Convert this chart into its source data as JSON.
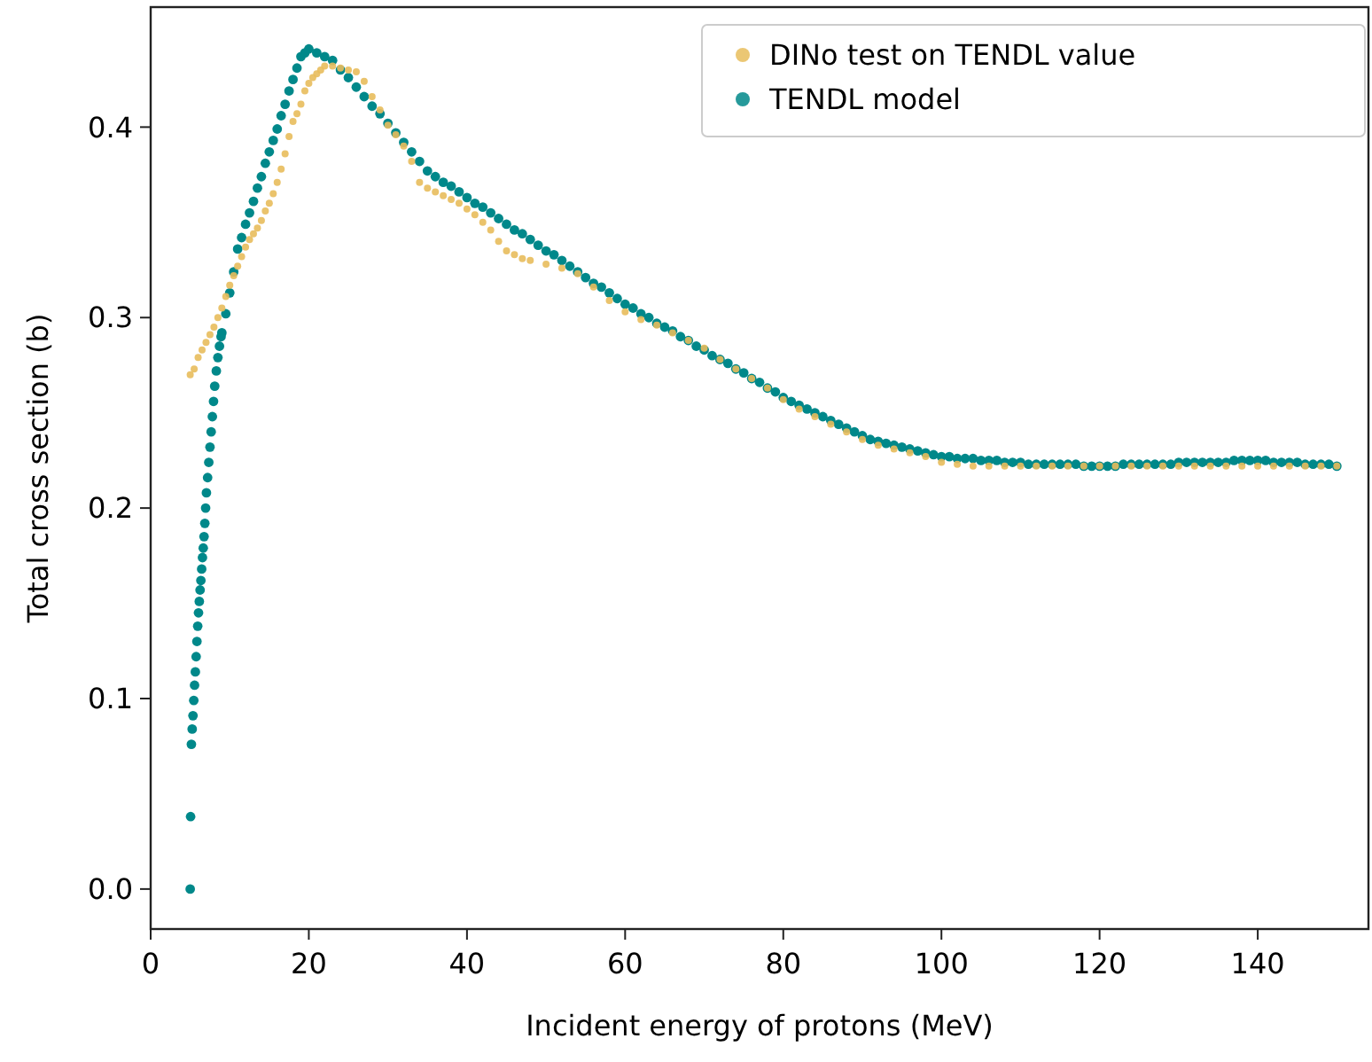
{
  "chart_data": {
    "type": "scatter",
    "xlabel": "Incident energy of protons (MeV)",
    "ylabel": "Total cross section (b)",
    "xlim": [
      0,
      154
    ],
    "ylim": [
      -0.021,
      0.463
    ],
    "xticks": [
      0,
      20,
      40,
      60,
      80,
      100,
      120,
      140
    ],
    "yticks": [
      {
        "value": 0,
        "label": "0.0"
      },
      0.1,
      0.2,
      0.3,
      0.4
    ],
    "legend": "top right",
    "marker": "circle",
    "series": [
      {
        "name": "DINo test on TENDL value",
        "color": "#e8bd5c",
        "x": [
          5,
          5.5,
          6,
          6.5,
          7,
          7.5,
          8,
          8.5,
          9,
          9.5,
          10,
          10.5,
          11,
          11.5,
          12,
          12.5,
          13,
          13.5,
          14,
          14.5,
          15,
          15.5,
          16,
          16.5,
          17,
          17.5,
          18,
          18.5,
          19,
          19.5,
          20,
          20.5,
          21,
          21.5,
          22,
          23,
          24,
          25,
          26,
          27,
          28,
          29,
          30,
          31,
          32,
          33,
          34,
          35,
          36,
          37,
          38,
          39,
          40,
          41,
          42,
          43,
          44,
          45,
          46,
          47,
          48,
          50,
          52,
          54,
          56,
          58,
          60,
          62,
          64,
          66,
          68,
          70,
          72,
          74,
          76,
          78,
          80,
          82,
          84,
          86,
          88,
          90,
          92,
          94,
          96,
          98,
          100,
          102,
          104,
          106,
          108,
          110,
          112,
          114,
          116,
          118,
          120,
          122,
          124,
          126,
          128,
          130,
          132,
          134,
          136,
          138,
          140,
          142,
          144,
          146,
          148,
          150
        ],
        "values": [
          0.27,
          0.273,
          0.279,
          0.283,
          0.287,
          0.291,
          0.295,
          0.3,
          0.305,
          0.311,
          0.317,
          0.322,
          0.327,
          0.332,
          0.337,
          0.341,
          0.344,
          0.347,
          0.351,
          0.356,
          0.36,
          0.365,
          0.371,
          0.378,
          0.386,
          0.395,
          0.403,
          0.407,
          0.412,
          0.419,
          0.423,
          0.426,
          0.428,
          0.43,
          0.432,
          0.432,
          0.431,
          0.43,
          0.429,
          0.424,
          0.416,
          0.409,
          0.401,
          0.396,
          0.39,
          0.382,
          0.371,
          0.368,
          0.366,
          0.364,
          0.362,
          0.36,
          0.357,
          0.354,
          0.35,
          0.346,
          0.34,
          0.335,
          0.333,
          0.331,
          0.33,
          0.328,
          0.326,
          0.323,
          0.316,
          0.309,
          0.303,
          0.299,
          0.296,
          0.292,
          0.288,
          0.284,
          0.278,
          0.273,
          0.268,
          0.263,
          0.257,
          0.252,
          0.248,
          0.244,
          0.24,
          0.236,
          0.233,
          0.231,
          0.229,
          0.227,
          0.224,
          0.223,
          0.222,
          0.222,
          0.222,
          0.222,
          0.222,
          0.222,
          0.222,
          0.222,
          0.222,
          0.222,
          0.222,
          0.222,
          0.222,
          0.222,
          0.222,
          0.222,
          0.222,
          0.222,
          0.222,
          0.222,
          0.222,
          0.222,
          0.222,
          0.222
        ]
      },
      {
        "name": "TENDL model",
        "color": "#00888a",
        "x": [
          5,
          5.05,
          5.15,
          5.25,
          5.35,
          5.45,
          5.55,
          5.65,
          5.75,
          5.85,
          5.95,
          6.05,
          6.15,
          6.25,
          6.35,
          6.45,
          6.55,
          6.65,
          6.75,
          6.85,
          6.95,
          7.05,
          7.2,
          7.35,
          7.5,
          7.65,
          7.8,
          7.95,
          8.1,
          8.3,
          8.5,
          8.7,
          8.9,
          9,
          9.5,
          10,
          10.5,
          11,
          11.5,
          12,
          12.5,
          13,
          13.5,
          14,
          14.5,
          15,
          15.5,
          16,
          16.5,
          17,
          17.5,
          18,
          18.5,
          19,
          19.5,
          20,
          21,
          22,
          23,
          24,
          25,
          26,
          27,
          28,
          29,
          30,
          31,
          32,
          33,
          34,
          35,
          36,
          37,
          38,
          39,
          40,
          41,
          42,
          43,
          44,
          45,
          46,
          47,
          48,
          49,
          50,
          51,
          52,
          53,
          54,
          55,
          56,
          57,
          58,
          59,
          60,
          61,
          62,
          63,
          64,
          65,
          66,
          67,
          68,
          69,
          70,
          71,
          72,
          73,
          74,
          75,
          76,
          77,
          78,
          79,
          80,
          81,
          82,
          83,
          84,
          85,
          86,
          87,
          88,
          89,
          90,
          91,
          92,
          93,
          94,
          95,
          96,
          97,
          98,
          99,
          100,
          101,
          102,
          103,
          104,
          105,
          106,
          107,
          108,
          109,
          110,
          111,
          112,
          113,
          114,
          115,
          116,
          117,
          118,
          119,
          120,
          121,
          122,
          123,
          124,
          125,
          126,
          127,
          128,
          129,
          130,
          131,
          132,
          133,
          134,
          135,
          136,
          137,
          138,
          139,
          140,
          141,
          142,
          143,
          144,
          145,
          146,
          147,
          148,
          149,
          150
        ],
        "values": [
          0.0,
          0.038,
          0.076,
          0.084,
          0.091,
          0.099,
          0.107,
          0.114,
          0.122,
          0.13,
          0.138,
          0.145,
          0.151,
          0.157,
          0.162,
          0.168,
          0.174,
          0.179,
          0.185,
          0.192,
          0.2,
          0.208,
          0.216,
          0.224,
          0.232,
          0.24,
          0.248,
          0.256,
          0.264,
          0.272,
          0.279,
          0.285,
          0.29,
          0.292,
          0.302,
          0.313,
          0.324,
          0.336,
          0.342,
          0.349,
          0.355,
          0.361,
          0.368,
          0.374,
          0.381,
          0.387,
          0.393,
          0.399,
          0.406,
          0.412,
          0.419,
          0.425,
          0.431,
          0.437,
          0.439,
          0.441,
          0.439,
          0.437,
          0.435,
          0.43,
          0.426,
          0.421,
          0.416,
          0.411,
          0.407,
          0.402,
          0.397,
          0.392,
          0.387,
          0.382,
          0.377,
          0.374,
          0.371,
          0.369,
          0.366,
          0.363,
          0.36,
          0.358,
          0.355,
          0.352,
          0.349,
          0.346,
          0.344,
          0.341,
          0.338,
          0.335,
          0.333,
          0.33,
          0.327,
          0.324,
          0.321,
          0.318,
          0.316,
          0.313,
          0.31,
          0.307,
          0.305,
          0.302,
          0.3,
          0.297,
          0.295,
          0.293,
          0.29,
          0.288,
          0.285,
          0.283,
          0.28,
          0.278,
          0.276,
          0.273,
          0.271,
          0.268,
          0.266,
          0.263,
          0.261,
          0.258,
          0.256,
          0.254,
          0.252,
          0.25,
          0.248,
          0.246,
          0.244,
          0.242,
          0.24,
          0.238,
          0.236,
          0.235,
          0.234,
          0.233,
          0.232,
          0.231,
          0.23,
          0.229,
          0.228,
          0.227,
          0.227,
          0.226,
          0.226,
          0.226,
          0.225,
          0.225,
          0.225,
          0.224,
          0.224,
          0.224,
          0.223,
          0.223,
          0.223,
          0.223,
          0.223,
          0.223,
          0.223,
          0.222,
          0.222,
          0.222,
          0.222,
          0.222,
          0.223,
          0.223,
          0.223,
          0.223,
          0.223,
          0.223,
          0.223,
          0.224,
          0.224,
          0.224,
          0.224,
          0.224,
          0.224,
          0.224,
          0.225,
          0.225,
          0.225,
          0.225,
          0.225,
          0.224,
          0.224,
          0.224,
          0.224,
          0.223,
          0.223,
          0.223,
          0.223,
          0.222
        ]
      }
    ]
  }
}
